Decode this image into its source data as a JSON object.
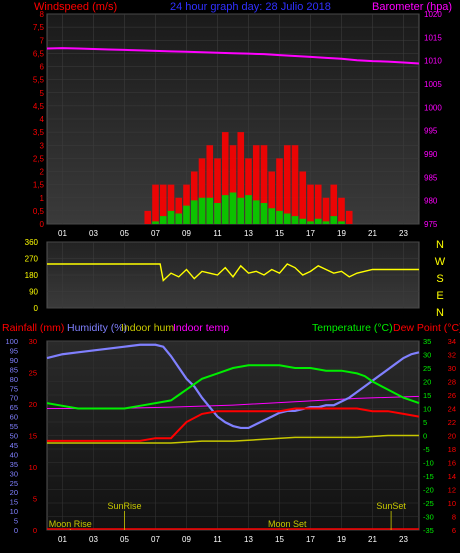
{
  "colors": {
    "windspeed": "#ff0000",
    "gust_fill": "#ff0000",
    "avg_fill": "#00cc00",
    "barometer": "#ff00ff",
    "direction": "#ffff00",
    "rainfall": "#ff0000",
    "humidity": "#8080ff",
    "indoor_hum": "#c8c800",
    "indoor_temp": "#ff00ff",
    "temperature": "#00ee00",
    "dew_point": "#ff0000",
    "title": "#3030ff"
  },
  "chart_data": [
    {
      "type": "bar",
      "panel": "wind-barometer",
      "title": "24 hour graph day:  28 Julio 2018",
      "ylabel_left": "Windspeed (m/s)",
      "ylabel_right": "Barometer (hpa)",
      "yticks_left": [
        "0",
        "0,5",
        "1",
        "1,5",
        "2",
        "2,5",
        "3",
        "3,5",
        "4",
        "4,5",
        "5",
        "5,5",
        "6",
        "6,5",
        "7",
        "7,5",
        "8"
      ],
      "yticks_right": [
        "975",
        "980",
        "985",
        "990",
        "995",
        "1000",
        "1005",
        "1010",
        "1015",
        "1020"
      ],
      "xticks": [
        "01",
        "03",
        "05",
        "07",
        "09",
        "11",
        "13",
        "15",
        "17",
        "19",
        "21",
        "23"
      ],
      "ylim_left": [
        0,
        8
      ],
      "ylim_right": [
        975,
        1020
      ],
      "x_hours": [
        0,
        24
      ],
      "series": [
        {
          "name": "Barometer (hpa)",
          "kind": "line",
          "x": [
            0,
            1,
            2,
            3,
            4,
            5,
            6,
            7,
            8,
            9,
            10,
            11,
            12,
            13,
            14,
            15,
            16,
            17,
            18,
            19,
            20,
            21,
            22,
            23,
            24
          ],
          "y": [
            1012.6,
            1012.7,
            1012.6,
            1012.5,
            1012.4,
            1012.3,
            1012.2,
            1012.1,
            1012.0,
            1011.9,
            1011.8,
            1011.7,
            1011.6,
            1011.5,
            1011.4,
            1011.2,
            1011.0,
            1010.8,
            1010.6,
            1010.4,
            1010.1,
            1009.9,
            1009.8,
            1009.6,
            1009.4
          ]
        },
        {
          "kind": "gust",
          "x": [
            6.5,
            7,
            7.5,
            8,
            8.5,
            9,
            9.5,
            10,
            10.5,
            11,
            11.5,
            12,
            12.5,
            13,
            13.5,
            14,
            14.5,
            15,
            15.5,
            16,
            16.5,
            17,
            17.5,
            18,
            18.5,
            19,
            19.5
          ],
          "y": [
            0.5,
            1.5,
            1.5,
            1.5,
            1.0,
            1.5,
            2.0,
            2.5,
            3.0,
            2.5,
            3.5,
            3.0,
            3.5,
            2.5,
            3.0,
            3.0,
            2.0,
            2.5,
            3.0,
            3.0,
            2.0,
            1.5,
            1.5,
            1.0,
            1.5,
            1.0,
            0.5
          ]
        },
        {
          "kind": "average",
          "x": [
            7,
            7.5,
            8,
            8.5,
            9,
            9.5,
            10,
            10.5,
            11,
            11.5,
            12,
            12.5,
            13,
            13.5,
            14,
            14.5,
            15,
            15.5,
            16,
            16.5,
            17,
            17.5,
            18,
            18.5,
            19
          ],
          "y": [
            0.1,
            0.3,
            0.5,
            0.4,
            0.7,
            0.9,
            1.0,
            1.0,
            0.8,
            1.1,
            1.2,
            1.0,
            1.1,
            0.9,
            0.8,
            0.6,
            0.5,
            0.4,
            0.3,
            0.2,
            0.1,
            0.2,
            0.1,
            0.3,
            0.1
          ]
        }
      ]
    },
    {
      "type": "line",
      "panel": "wind-direction",
      "yticks_left": [
        "0",
        "90",
        "180",
        "270",
        "360"
      ],
      "compass_labels": [
        "N",
        "W",
        "S",
        "E",
        "N"
      ],
      "ylim": [
        0,
        360
      ],
      "series": [
        {
          "name": "direction",
          "x": [
            0,
            7.3,
            7.5,
            8,
            8.5,
            9,
            9.5,
            10,
            10.5,
            11,
            11.5,
            12,
            12.5,
            13,
            13.5,
            14,
            14.5,
            15,
            15.5,
            16,
            16.5,
            17,
            17.5,
            18,
            18.5,
            19,
            19.5,
            20,
            20.5,
            21,
            22,
            23,
            24
          ],
          "y": [
            240,
            240,
            150,
            190,
            170,
            210,
            160,
            200,
            190,
            180,
            220,
            170,
            230,
            190,
            200,
            180,
            210,
            190,
            240,
            220,
            180,
            200,
            230,
            210,
            190,
            200,
            170,
            190,
            200,
            210,
            210,
            210,
            210
          ]
        }
      ]
    },
    {
      "type": "line",
      "panel": "temp-hum-rain",
      "legend_left": [
        "Rainfall (mm)",
        "Humidity (%)",
        "Indoor hum",
        "Indoor temp"
      ],
      "legend_right": [
        "Temperature (°C)",
        "Dew Point (°C)"
      ],
      "yticks_hum": [
        "0",
        "5",
        "10",
        "15",
        "20",
        "25",
        "30",
        "35",
        "40",
        "45",
        "50",
        "55",
        "60",
        "65",
        "70",
        "75",
        "80",
        "85",
        "90",
        "95",
        "100"
      ],
      "yticks_rain": [
        "0",
        "5",
        "10",
        "15",
        "20",
        "25",
        "30"
      ],
      "yticks_temp": [
        "-35",
        "-30",
        "-25",
        "-20",
        "-15",
        "-10",
        "-5",
        "0",
        "5",
        "10",
        "15",
        "20",
        "25",
        "30",
        "35"
      ],
      "yticks_dew": [
        "6",
        "8",
        "10",
        "12",
        "14",
        "16",
        "18",
        "20",
        "22",
        "24",
        "26",
        "28",
        "30",
        "32",
        "34"
      ],
      "xticks": [
        "01",
        "03",
        "05",
        "07",
        "09",
        "11",
        "13",
        "15",
        "17",
        "19",
        "21",
        "23"
      ],
      "annotations": [
        "SunRise",
        "SunSet",
        "Moon Rise",
        "Moon Set"
      ],
      "ylim_hum": [
        0,
        100
      ],
      "ylim_temp": [
        -35,
        35
      ],
      "series": [
        {
          "name": "Humidity (%)",
          "x": [
            0,
            1,
            2,
            3,
            4,
            5,
            6,
            7,
            7.5,
            8,
            8.5,
            9,
            9.5,
            10,
            10.5,
            11,
            11.5,
            12,
            12.5,
            13,
            13.5,
            14,
            14.5,
            15,
            15.5,
            16,
            16.5,
            17,
            17.5,
            18,
            18.5,
            19,
            19.5,
            20,
            20.5,
            21,
            21.5,
            22,
            22.5,
            23,
            23.5,
            24
          ],
          "y": [
            91,
            93,
            94,
            95,
            96,
            97,
            98,
            98,
            97,
            92,
            86,
            80,
            76,
            70,
            65,
            60,
            57,
            55,
            54,
            54,
            56,
            58,
            60,
            62,
            63,
            63,
            64,
            65,
            65,
            66,
            66,
            68,
            70,
            73,
            76,
            79,
            82,
            85,
            88,
            91,
            93,
            94
          ]
        },
        {
          "name": "Temperature (°C)",
          "x": [
            0,
            1,
            2,
            3,
            4,
            5,
            6,
            7,
            8,
            8.5,
            9,
            9.5,
            10,
            11,
            12,
            13,
            14,
            15,
            16,
            17,
            18,
            19,
            20,
            20.5,
            21,
            22,
            23,
            24
          ],
          "y": [
            12,
            11,
            10,
            10,
            10,
            10,
            11,
            12,
            13,
            15,
            17,
            19,
            21,
            23,
            25,
            26,
            26,
            26,
            25,
            25,
            24,
            24,
            23,
            22,
            20,
            17,
            14,
            12
          ]
        },
        {
          "name": "Dew Point (°C)",
          "x": [
            0,
            2,
            4,
            6,
            7,
            8,
            8.5,
            9,
            10,
            11,
            12,
            13,
            14,
            15,
            16,
            17,
            18,
            19,
            20,
            21,
            22,
            23,
            24
          ],
          "y": [
            -2,
            -2,
            -2,
            -2,
            -1,
            -1,
            2,
            5,
            8,
            9,
            9,
            9,
            9,
            9,
            10,
            10,
            10,
            10,
            10,
            9,
            9,
            8,
            7
          ]
        },
        {
          "name": "Indoor hum",
          "x": [
            0,
            3,
            6,
            8,
            10,
            12,
            14,
            16,
            18,
            20,
            22,
            24
          ],
          "y": [
            46,
            46,
            46,
            46,
            47,
            47,
            48,
            49,
            49,
            49,
            50,
            50
          ]
        },
        {
          "name": "Indoor temp",
          "x": [
            0,
            4,
            8,
            12,
            16,
            20,
            24
          ],
          "y": [
            24.0,
            24.0,
            24.2,
            24.5,
            25.0,
            25.5,
            25.8
          ]
        }
      ]
    }
  ]
}
